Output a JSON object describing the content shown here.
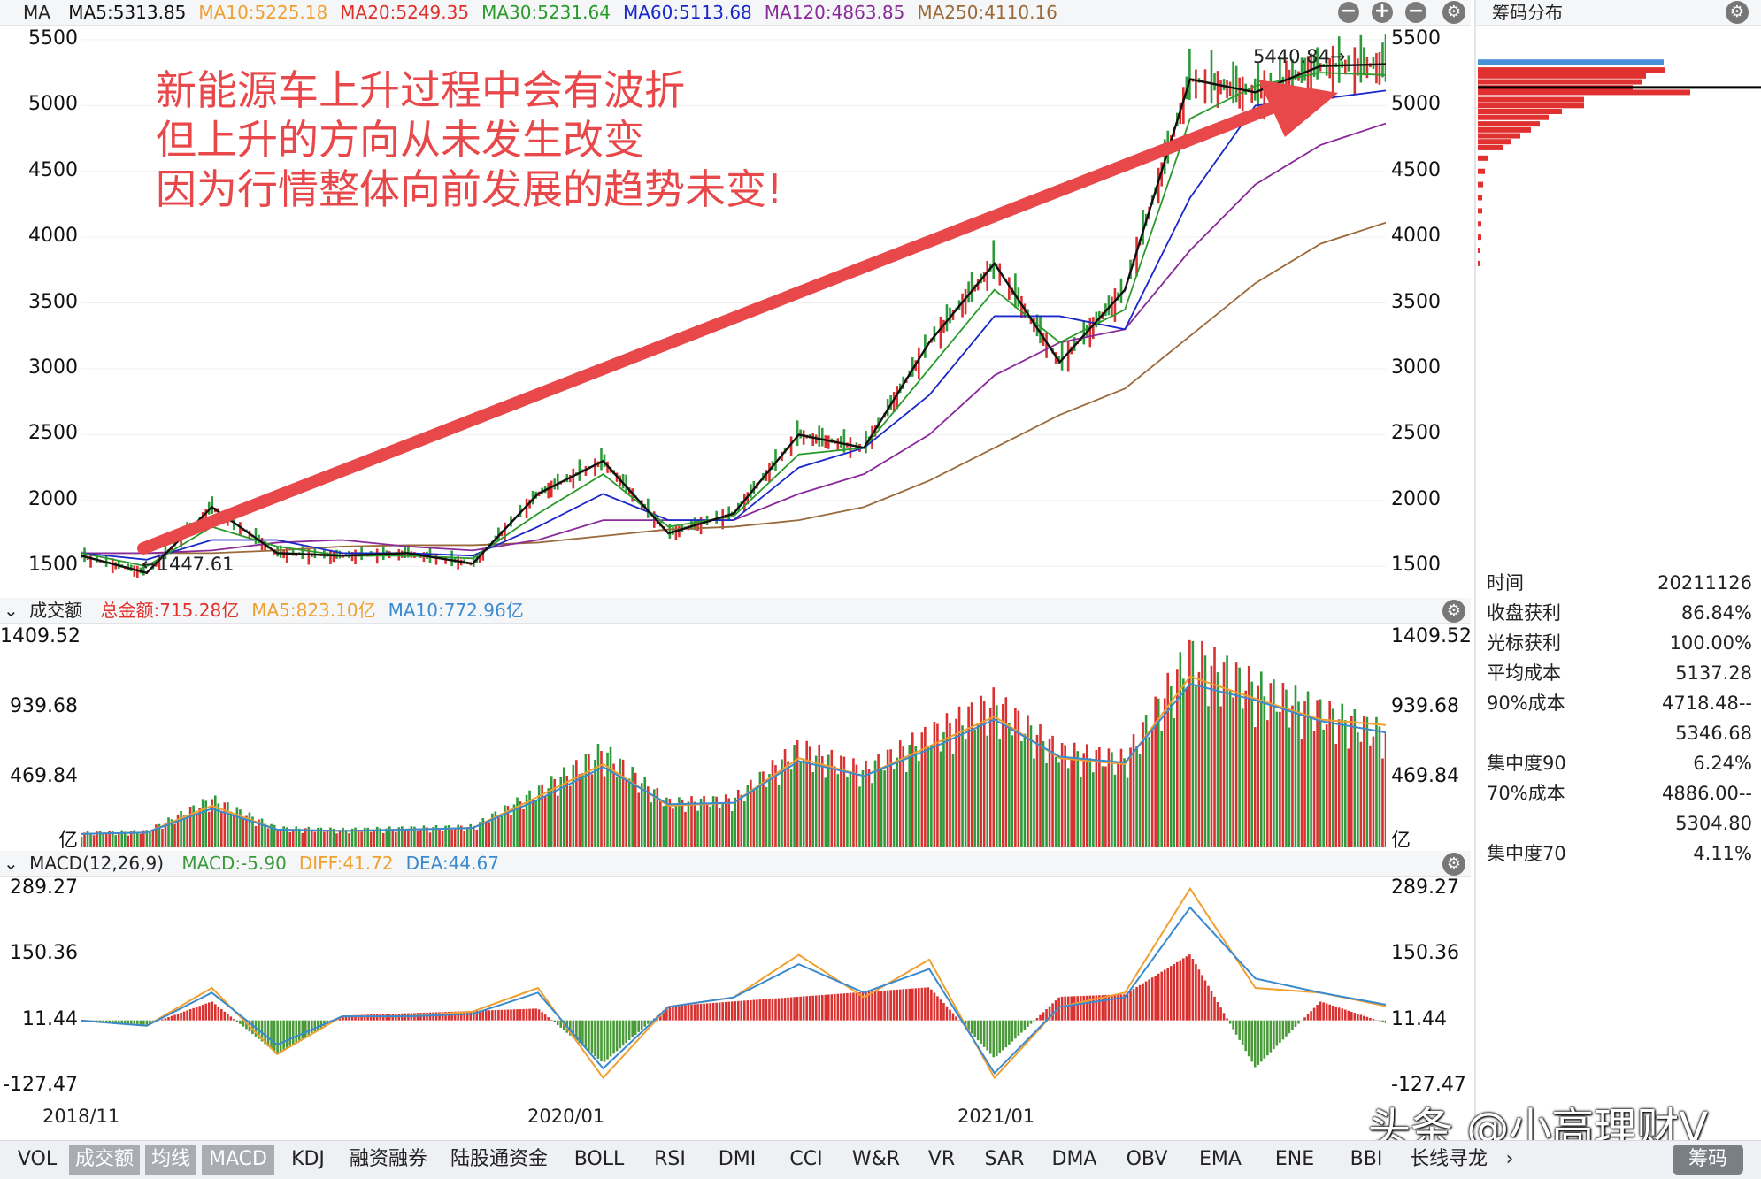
{
  "main_header": {
    "label": "MA",
    "items": [
      {
        "text": "MA5:5313.85",
        "color": "#111111"
      },
      {
        "text": "MA10:5225.18",
        "color": "#f0a030"
      },
      {
        "text": "MA20:5249.35",
        "color": "#e0302a"
      },
      {
        "text": "MA30:5231.64",
        "color": "#2a9a2a"
      },
      {
        "text": "MA60:5113.68",
        "color": "#1a28c8"
      },
      {
        "text": "MA120:4863.85",
        "color": "#8a2a9a"
      },
      {
        "text": "MA250:4110.16",
        "color": "#9a6a3a"
      }
    ],
    "icons": [
      "zoom-out-icon",
      "zoom-in-icon",
      "minus-icon",
      "gear-icon"
    ]
  },
  "side_panel": {
    "title": "筹码分布",
    "rows": [
      {
        "k": "时间",
        "v": "20211126"
      },
      {
        "k": "收盘获利",
        "v": "86.84%"
      },
      {
        "k": "光标获利",
        "v": "100.00%"
      },
      {
        "k": "平均成本",
        "v": "5137.28"
      },
      {
        "k": "90%成本",
        "v": "4718.48--"
      },
      {
        "k": "",
        "v": "5346.68"
      },
      {
        "k": "集中度90",
        "v": "6.24%"
      },
      {
        "k": "70%成本",
        "v": "4886.00--"
      },
      {
        "k": "",
        "v": "5304.80"
      },
      {
        "k": "集中度70",
        "v": "4.11%"
      }
    ],
    "distribution": [
      {
        "y": 5330,
        "len": 210,
        "color": "#4a90d9"
      },
      {
        "y": 5270,
        "len": 212,
        "color": "#e03030"
      },
      {
        "y": 5225,
        "len": 190,
        "color": "#e03030"
      },
      {
        "y": 5180,
        "len": 185,
        "color": "#e03030"
      },
      {
        "y": 5135,
        "len": 175,
        "color": "#e03030"
      },
      {
        "y": 5100,
        "len": 240,
        "color": "#e03030"
      },
      {
        "y": 5045,
        "len": 120,
        "color": "#e03030"
      },
      {
        "y": 5000,
        "len": 120,
        "color": "#e03030"
      },
      {
        "y": 4955,
        "len": 95,
        "color": "#e03030"
      },
      {
        "y": 4910,
        "len": 80,
        "color": "#e03030"
      },
      {
        "y": 4860,
        "len": 70,
        "color": "#e03030"
      },
      {
        "y": 4815,
        "len": 60,
        "color": "#e03030"
      },
      {
        "y": 4770,
        "len": 48,
        "color": "#e03030"
      },
      {
        "y": 4725,
        "len": 38,
        "color": "#e03030"
      },
      {
        "y": 4680,
        "len": 28,
        "color": "#e03030"
      },
      {
        "y": 4600,
        "len": 12,
        "color": "#e03030"
      },
      {
        "y": 4500,
        "len": 8,
        "color": "#e03030"
      },
      {
        "y": 4400,
        "len": 6,
        "color": "#e03030"
      },
      {
        "y": 4300,
        "len": 5,
        "color": "#e03030"
      },
      {
        "y": 4200,
        "len": 5,
        "color": "#e03030"
      },
      {
        "y": 4100,
        "len": 4,
        "color": "#e03030"
      },
      {
        "y": 4000,
        "len": 4,
        "color": "#e03030"
      },
      {
        "y": 3900,
        "len": 3,
        "color": "#e03030"
      },
      {
        "y": 3800,
        "len": 3,
        "color": "#e03030"
      }
    ]
  },
  "annotation": {
    "lines": [
      "新能源车上升过程中会有波折",
      "但上升的方向从未发生改变",
      "因为行情整体向前发展的趋势未变!"
    ],
    "color": "#e8484a"
  },
  "price_labels": {
    "high": "5440.84→",
    "low": "←1447.61"
  },
  "volume_header": {
    "label": "成交额",
    "items": [
      {
        "text": "总金额:715.28亿",
        "color": "#e0302a"
      },
      {
        "text": "MA5:823.10亿",
        "color": "#f0a030"
      },
      {
        "text": "MA10:772.96亿",
        "color": "#3a8ad0"
      }
    ]
  },
  "macd_header": {
    "label": "MACD(12,26,9)",
    "items": [
      {
        "text": "MACD:-5.90",
        "color": "#3a9a3a"
      },
      {
        "text": "DIFF:41.72",
        "color": "#f0a030"
      },
      {
        "text": "DEA:44.67",
        "color": "#3a8ad0"
      }
    ]
  },
  "x_labels": [
    "2018/11",
    "2020/01",
    "2021/01"
  ],
  "watermark": "头条 @小高理财V",
  "tabs": [
    "VOL",
    "成交额",
    "均线",
    "MACD",
    "KDJ",
    "融资融券",
    "陆股通资金",
    "BOLL",
    "RSI",
    "DMI",
    "CCI",
    "W&R",
    "VR",
    "SAR",
    "DMA",
    "OBV",
    "EMA",
    "ENE",
    "BBI",
    "长线寻龙",
    "›",
    "筹码"
  ],
  "active_tabs": [
    "成交额",
    "均线",
    "MACD"
  ],
  "chart_data": [
    {
      "type": "line",
      "name": "price",
      "ylim": [
        1300,
        5600
      ],
      "yticks": [
        1500,
        2000,
        2500,
        3000,
        3500,
        4000,
        4500,
        5000,
        5500
      ],
      "x": [
        0,
        0.05,
        0.1,
        0.15,
        0.2,
        0.25,
        0.3,
        0.35,
        0.4,
        0.45,
        0.5,
        0.55,
        0.6,
        0.65,
        0.7,
        0.75,
        0.8,
        0.85,
        0.9,
        0.95,
        1.0
      ],
      "series": [
        {
          "name": "MA5",
          "color": "#111111",
          "values": [
            1580,
            1450,
            1950,
            1600,
            1580,
            1600,
            1520,
            2050,
            2300,
            1750,
            1900,
            2500,
            2400,
            3200,
            3800,
            3050,
            3600,
            5200,
            5100,
            5300,
            5313.85
          ]
        },
        {
          "name": "MA30",
          "color": "#2a9a2a",
          "values": [
            1600,
            1500,
            1800,
            1650,
            1580,
            1580,
            1560,
            1900,
            2200,
            1800,
            1880,
            2350,
            2400,
            3000,
            3600,
            3200,
            3450,
            4900,
            5150,
            5250,
            5231.64
          ]
        },
        {
          "name": "MA60",
          "color": "#1a28c8",
          "values": [
            1600,
            1550,
            1700,
            1700,
            1600,
            1600,
            1580,
            1800,
            2050,
            1850,
            1850,
            2250,
            2400,
            2800,
            3400,
            3400,
            3300,
            4300,
            5000,
            5050,
            5113.68
          ]
        },
        {
          "name": "MA120",
          "color": "#8a2a9a",
          "values": [
            1600,
            1600,
            1620,
            1680,
            1700,
            1650,
            1620,
            1700,
            1850,
            1850,
            1850,
            2050,
            2200,
            2500,
            2950,
            3200,
            3300,
            3900,
            4400,
            4700,
            4863.85
          ]
        },
        {
          "name": "MA250",
          "color": "#9a6a3a",
          "values": [
            1600,
            1600,
            1600,
            1620,
            1650,
            1660,
            1660,
            1680,
            1730,
            1780,
            1800,
            1850,
            1950,
            2150,
            2400,
            2650,
            2850,
            3250,
            3650,
            3950,
            4110.16
          ]
        }
      ]
    },
    {
      "type": "bar",
      "name": "turnover",
      "ylim": [
        0,
        1500
      ],
      "yticks": [
        469.84,
        939.68,
        1409.52
      ],
      "unit": "亿",
      "x": [
        0,
        0.05,
        0.1,
        0.15,
        0.2,
        0.25,
        0.3,
        0.35,
        0.4,
        0.45,
        0.5,
        0.55,
        0.6,
        0.65,
        0.7,
        0.75,
        0.8,
        0.85,
        0.9,
        0.95,
        1.0
      ],
      "values": [
        90,
        100,
        300,
        120,
        110,
        120,
        130,
        350,
        600,
        280,
        300,
        620,
        480,
        700,
        900,
        600,
        550,
        1200,
        1000,
        850,
        715.28
      ],
      "series": [
        {
          "name": "MA5",
          "color": "#f0a030",
          "values": [
            90,
            100,
            280,
            120,
            110,
            120,
            130,
            340,
            560,
            280,
            300,
            600,
            480,
            680,
            880,
            600,
            560,
            1150,
            1000,
            860,
            823.1
          ]
        },
        {
          "name": "MA10",
          "color": "#3a8ad0",
          "values": [
            90,
            100,
            260,
            120,
            110,
            120,
            130,
            320,
            540,
            290,
            300,
            580,
            480,
            660,
            860,
            610,
            570,
            1100,
            990,
            850,
            772.96
          ]
        }
      ]
    },
    {
      "type": "bar",
      "name": "macd",
      "ylim": [
        -150,
        310
      ],
      "yticks": [
        -127.47,
        11.44,
        150.36,
        289.27
      ],
      "x": [
        0,
        0.05,
        0.1,
        0.15,
        0.2,
        0.25,
        0.3,
        0.35,
        0.4,
        0.45,
        0.5,
        0.55,
        0.6,
        0.65,
        0.7,
        0.75,
        0.8,
        0.85,
        0.9,
        0.95,
        1.0
      ],
      "values": [
        0,
        -10,
        40,
        -70,
        10,
        15,
        20,
        25,
        -90,
        30,
        40,
        50,
        60,
        70,
        -80,
        50,
        55,
        140,
        -100,
        40,
        -5.9
      ],
      "series": [
        {
          "name": "DIFF",
          "color": "#f0a030",
          "values": [
            11,
            0,
            80,
            -60,
            20,
            20,
            30,
            80,
            -110,
            40,
            60,
            150,
            60,
            140,
            -110,
            40,
            70,
            290,
            80,
            70,
            41.72
          ]
        },
        {
          "name": "DEA",
          "color": "#3a8ad0",
          "values": [
            11,
            0,
            70,
            -40,
            20,
            20,
            25,
            70,
            -90,
            40,
            60,
            130,
            70,
            120,
            -100,
            40,
            60,
            250,
            100,
            70,
            44.67
          ]
        }
      ]
    }
  ]
}
